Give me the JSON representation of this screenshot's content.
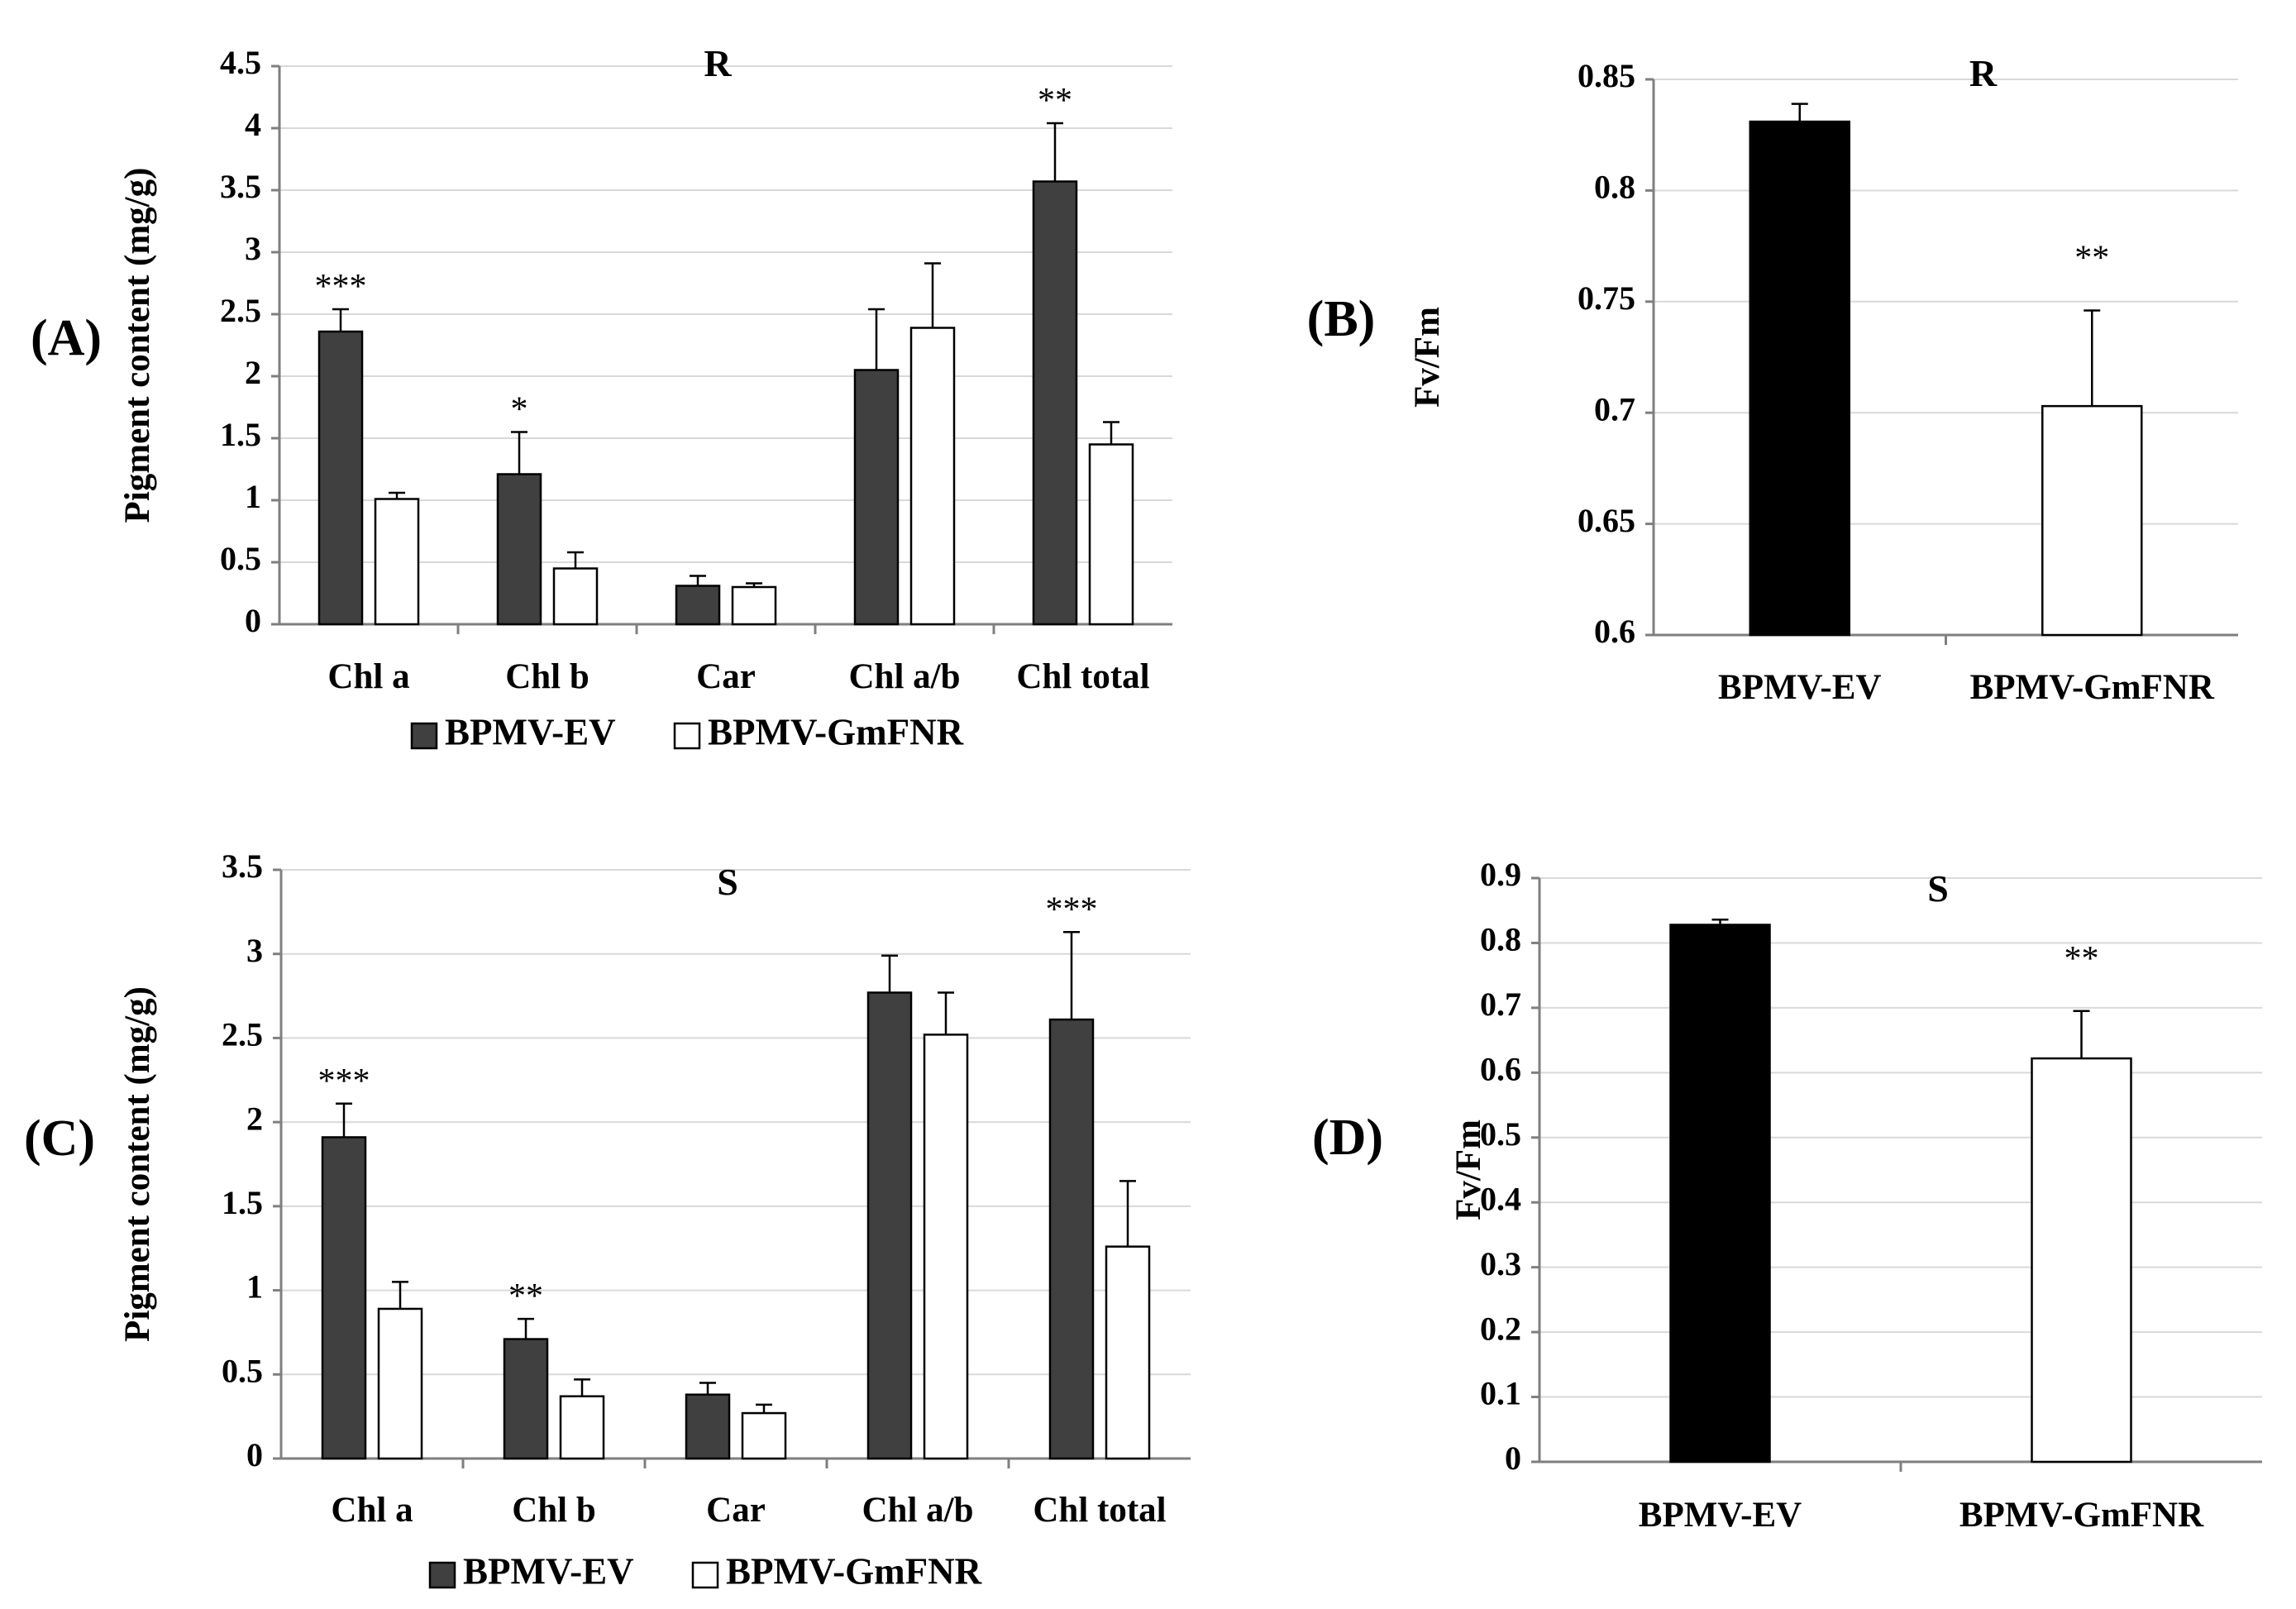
{
  "chart_data": [
    {
      "id": "A",
      "type": "bar",
      "panel_label": "(A)",
      "title": "R",
      "xlabel": "",
      "ylabel": "Pigment content (mg/g)",
      "ylim": [
        0,
        4.5
      ],
      "yticks": [
        "0",
        "0.5",
        "1",
        "1.5",
        "2",
        "2.5",
        "3",
        "3.5",
        "4",
        "4.5"
      ],
      "grid": true,
      "categories": [
        "Chl a",
        "Chl b",
        "Car",
        "Chl a/b",
        "Chl total"
      ],
      "series": [
        {
          "name": "BPMV-EV",
          "color": "#404040",
          "values": [
            2.36,
            1.21,
            0.31,
            2.05,
            3.57
          ],
          "errors": [
            0.18,
            0.34,
            0.08,
            0.49,
            0.47
          ]
        },
        {
          "name": "BPMV-GmFNR",
          "color": "#ffffff",
          "values": [
            1.01,
            0.45,
            0.3,
            2.39,
            1.45
          ],
          "errors": [
            0.05,
            0.13,
            0.03,
            0.52,
            0.18
          ]
        }
      ],
      "significance": [
        "***",
        "*",
        "",
        "",
        "**"
      ],
      "legend": [
        "BPMV-EV",
        "BPMV-GmFNR"
      ]
    },
    {
      "id": "B",
      "type": "bar",
      "panel_label": "(B)",
      "title": "R",
      "xlabel": "",
      "ylabel": "Fv/Fm",
      "ylim": [
        0.6,
        0.85
      ],
      "yticks": [
        "0.6",
        "0.65",
        "0.7",
        "0.75",
        "0.8",
        "0.85"
      ],
      "grid": true,
      "categories": [
        "BPMV-EV",
        "BPMV-GmFNR"
      ],
      "colors": [
        "#000000",
        "#ffffff"
      ],
      "values": [
        0.831,
        0.703
      ],
      "errors": [
        0.008,
        0.043
      ],
      "significance": [
        "",
        "**"
      ]
    },
    {
      "id": "C",
      "type": "bar",
      "panel_label": "(C)",
      "title": "S",
      "xlabel": "",
      "ylabel": "Pigment content (mg/g)",
      "ylim": [
        0,
        3.5
      ],
      "yticks": [
        "0",
        "0.5",
        "1",
        "1.5",
        "2",
        "2.5",
        "3",
        "3.5"
      ],
      "grid": true,
      "categories": [
        "Chl a",
        "Chl b",
        "Car",
        "Chl a/b",
        "Chl total"
      ],
      "series": [
        {
          "name": "BPMV-EV",
          "color": "#404040",
          "values": [
            1.91,
            0.71,
            0.38,
            2.77,
            2.61
          ],
          "errors": [
            0.2,
            0.12,
            0.07,
            0.22,
            0.52
          ]
        },
        {
          "name": "BPMV-GmFNR",
          "color": "#ffffff",
          "values": [
            0.89,
            0.37,
            0.27,
            2.52,
            1.26
          ],
          "errors": [
            0.16,
            0.1,
            0.05,
            0.25,
            0.39
          ]
        }
      ],
      "significance": [
        "***",
        "**",
        "",
        "",
        "***"
      ],
      "legend": [
        "BPMV-EV",
        "BPMV-GmFNR"
      ]
    },
    {
      "id": "D",
      "type": "bar",
      "panel_label": "(D)",
      "title": "S",
      "xlabel": "",
      "ylabel": "Fv/Fm",
      "ylim": [
        0,
        0.9
      ],
      "yticks": [
        "0",
        "0.1",
        "0.2",
        "0.3",
        "0.4",
        "0.5",
        "0.6",
        "0.7",
        "0.8",
        "0.9"
      ],
      "grid": true,
      "categories": [
        "BPMV-EV",
        "BPMV-GmFNR"
      ],
      "colors": [
        "#000000",
        "#ffffff"
      ],
      "values": [
        0.828,
        0.622
      ],
      "errors": [
        0.008,
        0.073
      ],
      "significance": [
        "",
        "**"
      ]
    }
  ]
}
